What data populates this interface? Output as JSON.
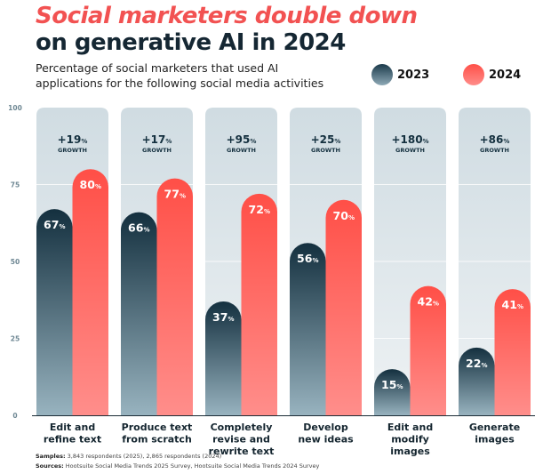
{
  "header": {
    "title_line1": "Social marketers double down",
    "title_line2": "on generative AI in 2024",
    "subtitle": "Percentage of social marketers that used AI applications for the following social media activities"
  },
  "legend": [
    {
      "label": "2023",
      "color": "#1b3a4b"
    },
    {
      "label": "2024",
      "color": "#ff5a54"
    }
  ],
  "footnotes": {
    "samples_label": "Samples:",
    "samples_text": " 3,843 respondents (2025), 2,865 respondents (2024)",
    "sources_label": "Sources:",
    "sources_text": " Hootsuite Social Media Trends 2025 Survey, Hootsuite Social Media Trends 2024 Survey"
  },
  "chart_data": {
    "type": "bar",
    "title": "Social marketers double down on generative AI in 2024",
    "subtitle": "Percentage of social marketers that used AI applications for the following social media activities",
    "xlabel": "",
    "ylabel": "",
    "ylim": [
      0,
      100
    ],
    "yticks": [
      0,
      25,
      50,
      75,
      100
    ],
    "grid": true,
    "legend_position": "top-right",
    "categories": [
      [
        "Edit and",
        "refine text"
      ],
      [
        "Produce text",
        "from scratch"
      ],
      [
        "Completely",
        "revise and",
        "rewrite text"
      ],
      [
        "Develop",
        "new ideas"
      ],
      [
        "Edit and",
        "modify",
        "images"
      ],
      [
        "Generate",
        "images"
      ]
    ],
    "series": [
      {
        "name": "2023",
        "values": [
          67,
          66,
          37,
          56,
          15,
          22
        ]
      },
      {
        "name": "2024",
        "values": [
          80,
          77,
          72,
          70,
          42,
          41
        ]
      }
    ],
    "value_suffix": "%",
    "annotations": [
      {
        "value": "+19",
        "suffix": "%",
        "label": "GROWTH"
      },
      {
        "value": "+17",
        "suffix": "%",
        "label": "GROWTH"
      },
      {
        "value": "+95",
        "suffix": "%",
        "label": "GROWTH"
      },
      {
        "value": "+25",
        "suffix": "%",
        "label": "GROWTH"
      },
      {
        "value": "+180",
        "suffix": "%",
        "label": "GROWTH"
      },
      {
        "value": "+86",
        "suffix": "%",
        "label": "GROWTH"
      }
    ]
  }
}
